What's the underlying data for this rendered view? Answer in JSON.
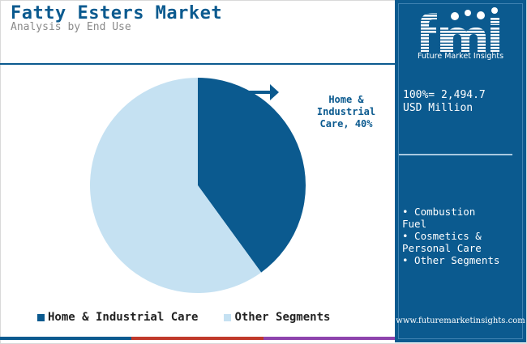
{
  "header": {
    "title": "Fatty Esters Market",
    "subtitle": "Analysis by End Use"
  },
  "chart_data": {
    "type": "pie",
    "categories": [
      "Home & Industrial Care",
      "Other Segments"
    ],
    "values": [
      40,
      60
    ],
    "unit": "%",
    "colors": [
      "#0b5a8f",
      "#c5e1f2"
    ],
    "annotation": {
      "text_line1": "Home &",
      "text_line2": "Industrial",
      "text_line3": "Care, 40%"
    },
    "legend": {
      "placement": "bottom",
      "items": [
        {
          "label": "Home & Industrial Care",
          "color": "#0b5a8f"
        },
        {
          "label": "Other Segments",
          "color": "#c5e1f2"
        }
      ]
    }
  },
  "panel": {
    "logo_text": "Future Market Insights",
    "logo_mark": "fmi",
    "total_line1": "100%= 2,494.7",
    "total_line2": "USD Million",
    "other_segments": [
      {
        "line1": "• Combustion",
        "line2": "Fuel"
      },
      {
        "line1": "• Cosmetics &",
        "line2": "Personal Care"
      },
      {
        "line1": "• Other Segments",
        "line2": ""
      }
    ],
    "url": "www.futuremarketinsights.com"
  },
  "bottom_bar_colors": [
    "#0b5a8f",
    "#c0392b",
    "#8e44ad"
  ]
}
